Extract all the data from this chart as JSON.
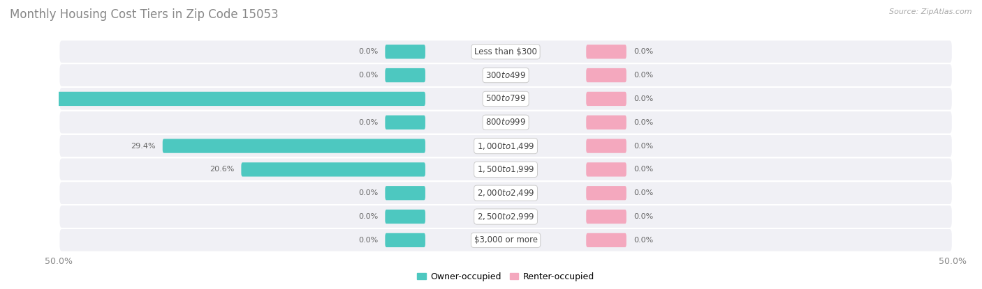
{
  "title": "Monthly Housing Cost Tiers in Zip Code 15053",
  "source": "Source: ZipAtlas.com",
  "categories": [
    "Less than $300",
    "$300 to $499",
    "$500 to $799",
    "$800 to $999",
    "$1,000 to $1,499",
    "$1,500 to $1,999",
    "$2,000 to $2,499",
    "$2,500 to $2,999",
    "$3,000 or more"
  ],
  "owner_values": [
    0.0,
    0.0,
    50.0,
    0.0,
    29.4,
    20.6,
    0.0,
    0.0,
    0.0
  ],
  "renter_values": [
    0.0,
    0.0,
    0.0,
    0.0,
    0.0,
    0.0,
    0.0,
    0.0,
    0.0
  ],
  "owner_color": "#4dc8c0",
  "renter_color": "#f4a8be",
  "row_bg_even": "#f0f0f5",
  "row_bg_odd": "#e8e8f0",
  "label_text_color": "#666666",
  "title_color": "#888888",
  "axis_limit": 50.0,
  "stub_size": 4.5,
  "bar_height": 0.6,
  "legend_owner": "Owner-occupied",
  "legend_renter": "Renter-occupied"
}
